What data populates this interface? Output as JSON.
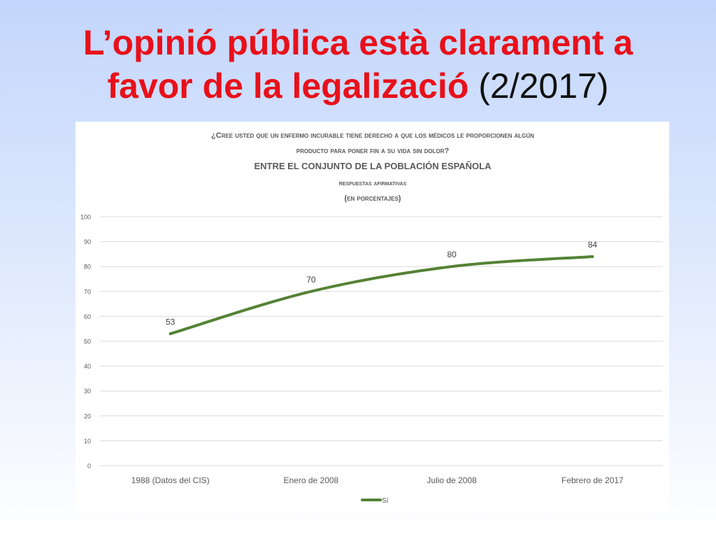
{
  "slide": {
    "title_line1": "L’opinió pública està clarament a",
    "title_line2_bold": "favor de la legalizació",
    "title_line2_date": "(2/2017)"
  },
  "colors": {
    "title": "#e8101a",
    "series": "#548235",
    "grid": "#d9d9d9",
    "chart_text": "#595959"
  },
  "chart_data": {
    "type": "line",
    "title_lines": [
      "¿Cree usted que un enfermo incurable tiene derecho a que los médicos le proporcionen algún",
      "producto para poner fin a su vida sin dolor?",
      "ENTRE EL CONJUNTO DE LA POBLACIÓN ESPAÑOLA",
      "respuestas afirmativas",
      "(en porcentajes)"
    ],
    "categories": [
      "1988 (Datos del CIS)",
      "Enero de 2008",
      "Julio de 2008",
      "Febrero de 2017"
    ],
    "series": [
      {
        "name": "Sí",
        "values": [
          53,
          70,
          80,
          84
        ]
      }
    ],
    "ylim": [
      0,
      100
    ],
    "yticks": [
      0,
      10,
      20,
      30,
      40,
      50,
      60,
      70,
      80,
      90,
      100
    ],
    "grid": true,
    "legend": "bottom",
    "xlabel": "",
    "ylabel": ""
  }
}
